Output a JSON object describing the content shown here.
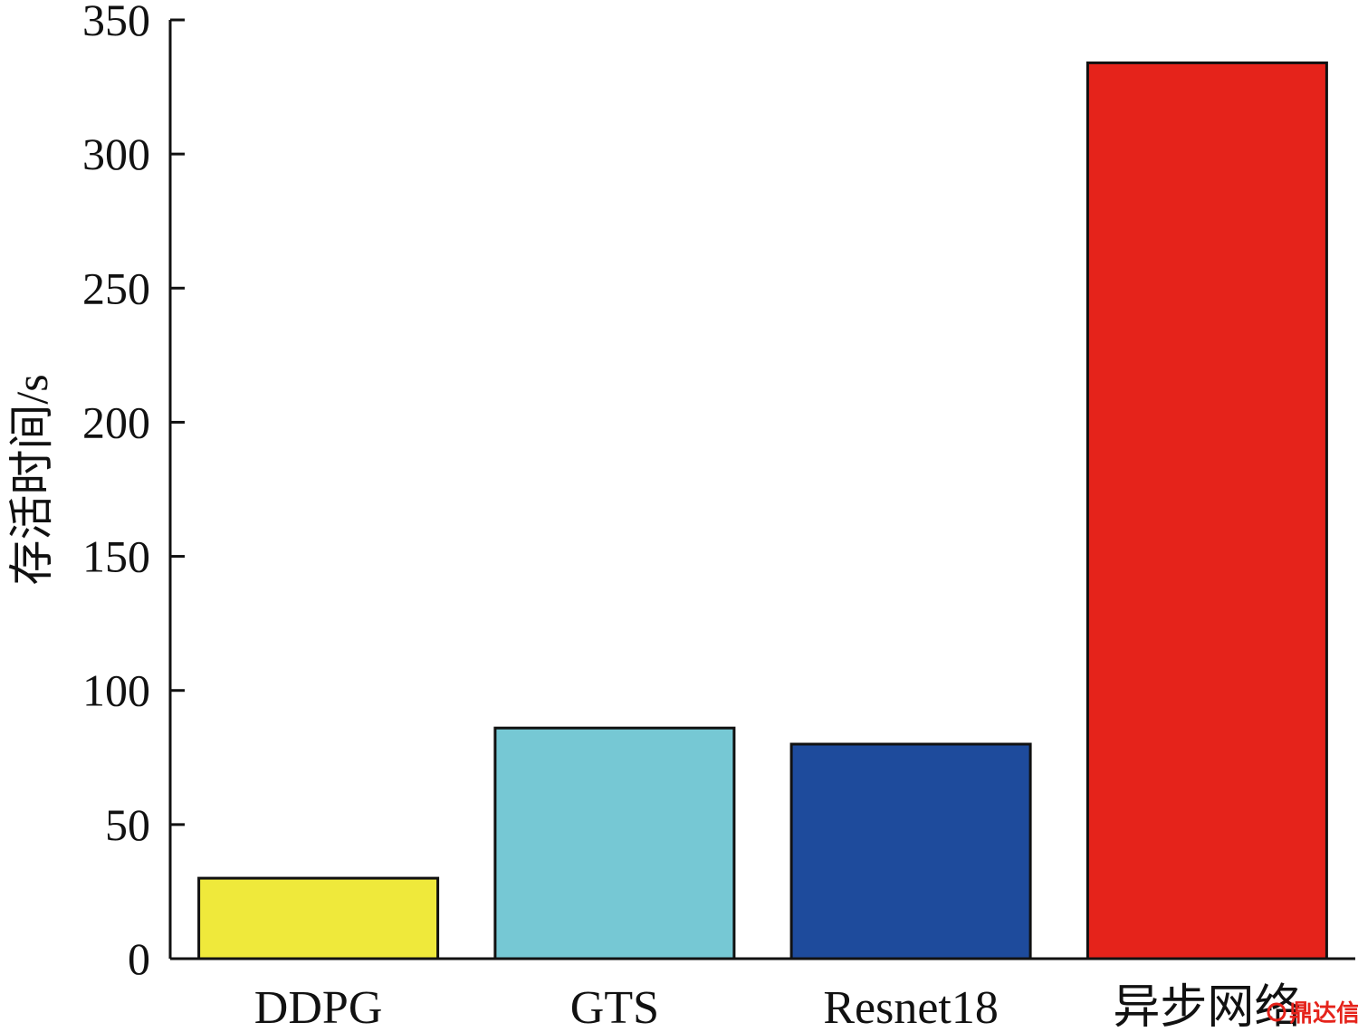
{
  "chart_data": {
    "type": "bar",
    "title": "",
    "xlabel": "",
    "ylabel": "存活时间/s",
    "categories": [
      "DDPG",
      "GTS",
      "Resnet18",
      "异步网络"
    ],
    "values": [
      30,
      86,
      80,
      334
    ],
    "colors": [
      "#efe93b",
      "#76c8d4",
      "#1e4b9c",
      "#e5231b"
    ],
    "ylim": [
      0,
      350
    ],
    "yticks": [
      0,
      50,
      100,
      150,
      200,
      250,
      300,
      350
    ],
    "grid": false,
    "legend": "none"
  },
  "watermark": {
    "text": "鼎达信",
    "color": "#e5231b"
  }
}
